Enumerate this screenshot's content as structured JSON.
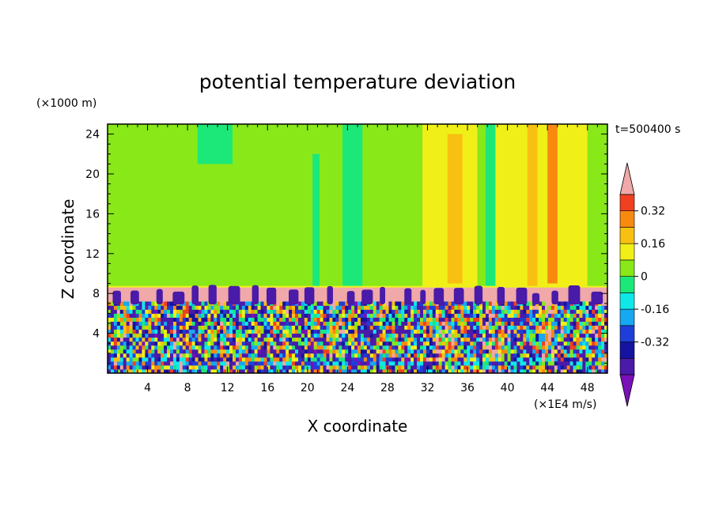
{
  "chart_data": {
    "type": "heatmap",
    "title": "potential temperature deviation",
    "xlabel": "X coordinate",
    "ylabel": "Z coordinate",
    "x_unit": "(×1E4 m/s)",
    "y_unit": "(×1000 m)",
    "time_label": "t=500400 s",
    "xlim": [
      0,
      50
    ],
    "ylim": [
      0,
      25
    ],
    "x_ticks": [
      4,
      8,
      12,
      16,
      20,
      24,
      28,
      32,
      36,
      40,
      44,
      48
    ],
    "y_ticks": [
      4,
      8,
      12,
      16,
      20,
      24
    ],
    "colorbar": {
      "levels": [
        -0.48,
        -0.4,
        -0.32,
        -0.24,
        -0.16,
        -0.08,
        0,
        0.08,
        0.16,
        0.24,
        0.32,
        0.4
      ],
      "colors": [
        "#7a10b8",
        "#4a1aa8",
        "#1414a0",
        "#1d3fd8",
        "#16a8f0",
        "#10e8e8",
        "#1ce87a",
        "#88e818",
        "#f0f018",
        "#f8c010",
        "#f88a10",
        "#f04020",
        "#f0a8a8"
      ],
      "tick_labels": [
        "-0.32",
        "-0.16",
        "0",
        "0.16",
        "0.32"
      ],
      "tick_values": [
        -0.32,
        -0.16,
        0,
        0.16,
        0.32
      ]
    },
    "regions": {
      "upper_background_value": 0.02,
      "stable_layer_value": 0.45,
      "stable_layer_z": [
        7.2,
        8.6
      ],
      "convective_layer_z": [
        0,
        7.2
      ],
      "upper_columns": [
        {
          "x": [
            9,
            12.5
          ],
          "z": [
            21,
            25
          ],
          "value": -0.06
        },
        {
          "x": [
            18,
            19.5
          ],
          "z": [
            8.6,
            25
          ],
          "value": 0.06
        },
        {
          "x": [
            20,
            21.5
          ],
          "z": [
            8.6,
            25
          ],
          "value": 0.06
        },
        {
          "x": [
            20.5,
            21.2
          ],
          "z": [
            8.6,
            22
          ],
          "value": -0.06
        },
        {
          "x": [
            23.5,
            25.5
          ],
          "z": [
            8.6,
            25
          ],
          "value": -0.06
        },
        {
          "x": [
            26,
            27
          ],
          "z": [
            8.6,
            25
          ],
          "value": 0.06
        },
        {
          "x": [
            30.5,
            31.5
          ],
          "z": [
            8.6,
            25
          ],
          "value": 0.06
        },
        {
          "x": [
            31.5,
            33
          ],
          "z": [
            8.6,
            25
          ],
          "value": 0.14
        },
        {
          "x": [
            33,
            37
          ],
          "z": [
            8.6,
            25
          ],
          "value": 0.14
        },
        {
          "x": [
            34,
            35.5
          ],
          "z": [
            9,
            24
          ],
          "value": 0.22
        },
        {
          "x": [
            37,
            37.8
          ],
          "z": [
            8.6,
            25
          ],
          "value": 0.06
        },
        {
          "x": [
            37.8,
            38.8
          ],
          "z": [
            8.6,
            25
          ],
          "value": -0.06
        },
        {
          "x": [
            38.8,
            42
          ],
          "z": [
            8.6,
            25
          ],
          "value": 0.14
        },
        {
          "x": [
            42,
            43
          ],
          "z": [
            8.6,
            25
          ],
          "value": 0.22
        },
        {
          "x": [
            43,
            45
          ],
          "z": [
            8.6,
            25
          ],
          "value": 0.14
        },
        {
          "x": [
            44,
            45.2
          ],
          "z": [
            9,
            25
          ],
          "value": 0.3
        },
        {
          "x": [
            45,
            48
          ],
          "z": [
            8.6,
            25
          ],
          "value": 0.14
        },
        {
          "x": [
            48,
            50
          ],
          "z": [
            8.6,
            25
          ],
          "value": 0.06
        }
      ]
    }
  }
}
